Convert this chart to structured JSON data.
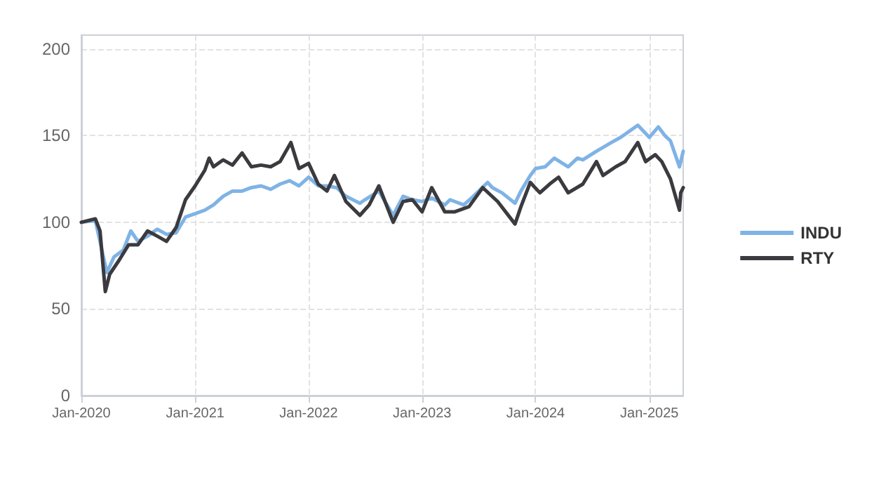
{
  "chart_data": {
    "type": "line",
    "legend": "right",
    "grid": true,
    "line_style": "solid",
    "marker": "none",
    "xlim": [
      "2020-01-01",
      "2025-04-20"
    ],
    "xticks": [
      {
        "value": "2020-01-01",
        "label": "Jan-2020"
      },
      {
        "value": "2021-01-01",
        "label": "Jan-2021"
      },
      {
        "value": "2022-01-01",
        "label": "Jan-2022"
      },
      {
        "value": "2023-01-01",
        "label": "Jan-2023"
      },
      {
        "value": "2024-01-01",
        "label": "Jan-2024"
      },
      {
        "value": "2025-01-01",
        "label": "Jan-2025"
      }
    ],
    "ylim": [
      0,
      208
    ],
    "yticks": [
      0,
      50,
      100,
      150,
      200
    ],
    "series": [
      {
        "name": "INDU",
        "color": "#7fb3e5",
        "x": [
          "2020-01-01",
          "2020-02-15",
          "2020-03-23",
          "2020-04-15",
          "2020-05-15",
          "2020-06-08",
          "2020-07-01",
          "2020-08-01",
          "2020-09-01",
          "2020-10-01",
          "2020-11-01",
          "2020-12-01",
          "2021-01-01",
          "2021-02-01",
          "2021-03-01",
          "2021-04-01",
          "2021-05-01",
          "2021-06-01",
          "2021-07-01",
          "2021-08-01",
          "2021-09-01",
          "2021-10-01",
          "2021-11-01",
          "2021-12-01",
          "2022-01-01",
          "2022-02-01",
          "2022-03-01",
          "2022-04-01",
          "2022-05-01",
          "2022-06-15",
          "2022-07-01",
          "2022-08-15",
          "2022-09-30",
          "2022-11-01",
          "2022-12-01",
          "2023-01-01",
          "2023-02-01",
          "2023-03-15",
          "2023-04-01",
          "2023-05-15",
          "2023-06-15",
          "2023-07-31",
          "2023-08-15",
          "2023-09-15",
          "2023-10-27",
          "2023-11-15",
          "2023-12-15",
          "2024-01-01",
          "2024-02-01",
          "2024-03-01",
          "2024-04-15",
          "2024-05-15",
          "2024-06-01",
          "2024-07-15",
          "2024-09-01",
          "2024-10-01",
          "2024-11-25",
          "2025-01-01",
          "2025-01-30",
          "2025-02-20",
          "2025-03-10",
          "2025-04-08",
          "2025-04-20"
        ],
        "values": [
          100,
          101,
          71,
          80,
          84,
          95,
          89,
          92,
          96,
          93,
          94,
          103,
          105,
          107,
          110,
          115,
          118,
          118,
          120,
          121,
          119,
          122,
          124,
          121,
          126,
          121,
          121,
          120,
          115,
          111,
          113,
          118,
          104,
          115,
          113,
          112,
          114,
          110,
          113,
          110,
          115,
          123,
          120,
          117,
          111,
          118,
          127,
          131,
          132,
          137,
          132,
          137,
          136,
          141,
          146,
          149,
          156,
          149,
          155,
          150,
          147,
          132,
          141
        ]
      },
      {
        "name": "RTY",
        "color": "#3a3a3f",
        "x": [
          "2020-01-01",
          "2020-02-15",
          "2020-03-01",
          "2020-03-18",
          "2020-04-01",
          "2020-05-01",
          "2020-06-01",
          "2020-07-01",
          "2020-08-01",
          "2020-09-01",
          "2020-10-01",
          "2020-11-01",
          "2020-12-01",
          "2021-01-01",
          "2021-02-01",
          "2021-02-15",
          "2021-03-01",
          "2021-04-01",
          "2021-05-01",
          "2021-06-01",
          "2021-07-01",
          "2021-08-01",
          "2021-09-01",
          "2021-10-01",
          "2021-11-05",
          "2021-12-01",
          "2022-01-01",
          "2022-02-01",
          "2022-03-01",
          "2022-03-25",
          "2022-05-01",
          "2022-06-15",
          "2022-07-15",
          "2022-08-15",
          "2022-09-30",
          "2022-11-01",
          "2022-12-01",
          "2023-01-01",
          "2023-02-01",
          "2023-03-15",
          "2023-04-15",
          "2023-06-01",
          "2023-07-15",
          "2023-09-01",
          "2023-10-27",
          "2023-11-15",
          "2023-12-15",
          "2024-01-15",
          "2024-02-15",
          "2024-03-15",
          "2024-04-15",
          "2024-06-01",
          "2024-07-15",
          "2024-08-05",
          "2024-09-15",
          "2024-10-15",
          "2024-11-25",
          "2024-12-20",
          "2025-01-20",
          "2025-02-10",
          "2025-03-10",
          "2025-04-08",
          "2025-04-12",
          "2025-04-20"
        ],
        "values": [
          100,
          102,
          95,
          60,
          70,
          78,
          87,
          87,
          95,
          92,
          89,
          97,
          113,
          121,
          130,
          137,
          132,
          136,
          133,
          140,
          132,
          133,
          132,
          135,
          146,
          131,
          134,
          122,
          118,
          127,
          112,
          104,
          110,
          121,
          100,
          112,
          113,
          106,
          120,
          106,
          106,
          109,
          120,
          112,
          99,
          109,
          123,
          117,
          122,
          126,
          117,
          122,
          135,
          127,
          132,
          135,
          146,
          135,
          139,
          135,
          125,
          107,
          117,
          120
        ]
      }
    ]
  }
}
